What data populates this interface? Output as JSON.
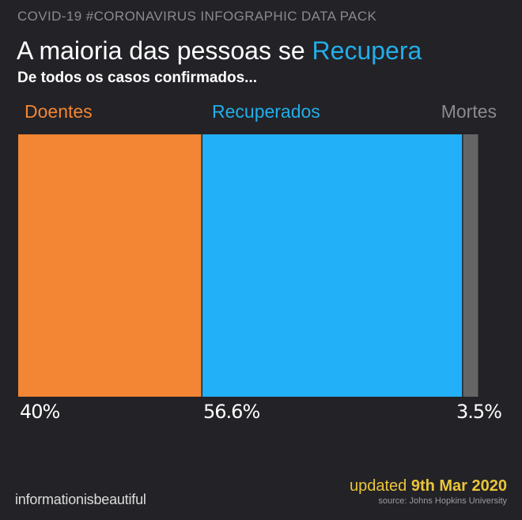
{
  "header": {
    "kicker": "COVID-19 #CORONAVIRUS INFOGRAPHIC DATA PACK",
    "title_main": "A maioria das pessoas se ",
    "title_accent": "Recupera",
    "subtitle": "De todos os casos confirmados..."
  },
  "chart_data": {
    "type": "bar",
    "orientation": "stacked-horizontal-100",
    "categories": [
      "Doentes",
      "Recuperados",
      "Mortes"
    ],
    "values": [
      40,
      56.6,
      3.5
    ],
    "value_labels": [
      "40%",
      "56.6%",
      "3.5%"
    ],
    "colors": [
      "#f28634",
      "#22b0f8",
      "#666566"
    ],
    "label_colors": [
      "#f28634",
      "#22aee8",
      "#8b8a8f"
    ]
  },
  "footer": {
    "brand": "informationisbeautiful",
    "updated_prefix": "updated ",
    "updated_date": "9th Mar 2020",
    "source": "source: Johns Hopkins University"
  }
}
